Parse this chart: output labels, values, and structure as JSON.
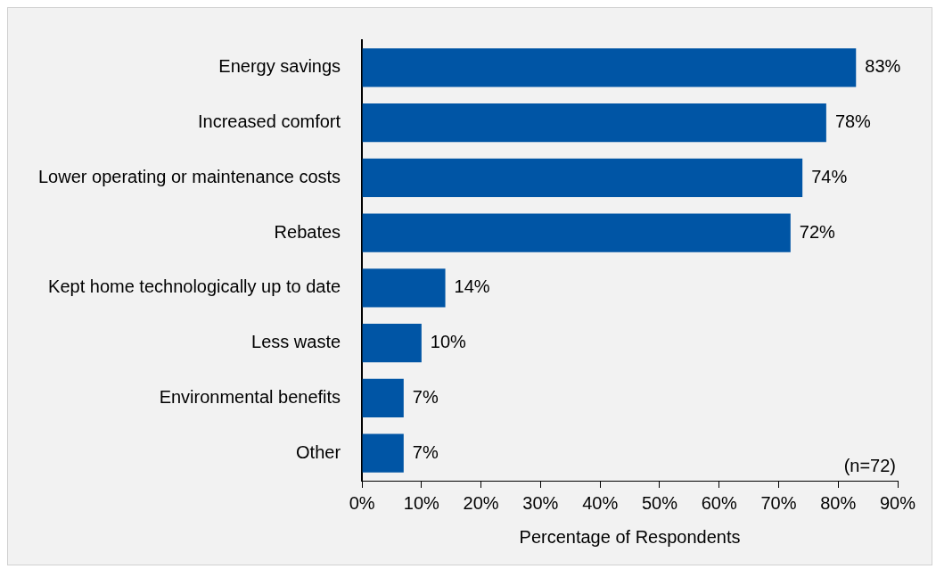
{
  "chart_data": {
    "type": "bar",
    "orientation": "horizontal",
    "categories": [
      "Energy savings",
      "Increased comfort",
      "Lower operating or maintenance costs",
      "Rebates",
      "Kept home technologically up to date",
      "Less waste",
      "Environmental benefits",
      "Other"
    ],
    "values": [
      83,
      78,
      74,
      72,
      14,
      10,
      7,
      7
    ],
    "value_labels": [
      "83%",
      "78%",
      "74%",
      "72%",
      "14%",
      "10%",
      "7%",
      "7%"
    ],
    "color": "#0055a5",
    "xlim": [
      0,
      90
    ],
    "xticks": [
      {
        "value": 0,
        "label": "0%"
      },
      {
        "value": 10,
        "label": "10%"
      },
      {
        "value": 20,
        "label": "20%"
      },
      {
        "value": 30,
        "label": "30%"
      },
      {
        "value": 40,
        "label": "40%"
      },
      {
        "value": 50,
        "label": "50%"
      },
      {
        "value": 60,
        "label": "60%"
      },
      {
        "value": 70,
        "label": "70%"
      },
      {
        "value": 80,
        "label": "80%"
      },
      {
        "value": 90,
        "label": "90%"
      }
    ],
    "xlabel": "Percentage of Respondents",
    "annotations": [
      "(n=72)"
    ],
    "grid": false,
    "legend": false
  }
}
